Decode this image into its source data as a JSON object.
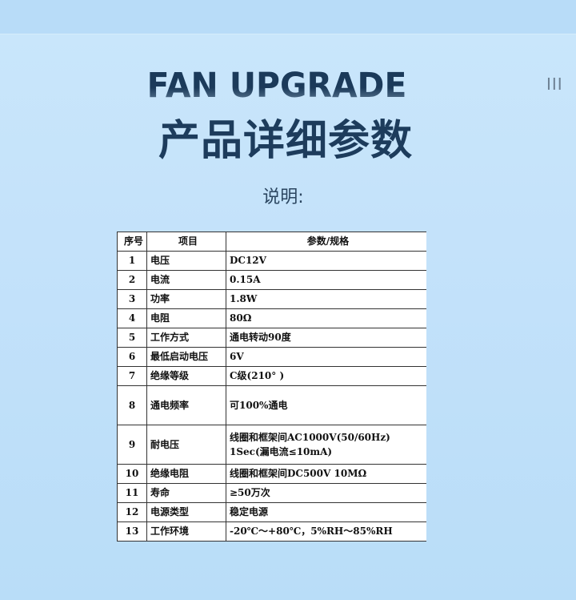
{
  "header": {
    "title_en": "FAN UPGRADE",
    "title_cn": "产品详细参数",
    "menu_glyph": "III",
    "subtitle": "说明:"
  },
  "table": {
    "headers": [
      "序号",
      "项目",
      "参数/规格"
    ],
    "rows": [
      {
        "no": "1",
        "item": "电压",
        "value": "DC12V"
      },
      {
        "no": "2",
        "item": "电流",
        "value": "0.15A"
      },
      {
        "no": "3",
        "item": "功率",
        "value": "1.8W"
      },
      {
        "no": "4",
        "item": "电阻",
        "value": "80Ω"
      },
      {
        "no": "5",
        "item": "工作方式",
        "value": "通电转动90度"
      },
      {
        "no": "6",
        "item": "最低启动电压",
        "value": "6V"
      },
      {
        "no": "7",
        "item": "绝缘等级",
        "value": "C级(210° )"
      },
      {
        "no": "8",
        "item": "通电频率",
        "value": "可100%通电"
      },
      {
        "no": "9",
        "item": "耐电压",
        "value": "线圈和框架间AC1000V(50/60Hz)",
        "value2": "1Sec(漏电流≤10mA)"
      },
      {
        "no": "10",
        "item": "绝缘电阻",
        "value": "线圈和框架间DC500V  10MΩ"
      },
      {
        "no": "11",
        "item": "寿命",
        "value": "≥50万次"
      },
      {
        "no": "12",
        "item": "电源类型",
        "value": "稳定电源"
      },
      {
        "no": "13",
        "item": "工作环境",
        "value": "-20℃～+80℃，5%RH～85%RH"
      }
    ]
  }
}
